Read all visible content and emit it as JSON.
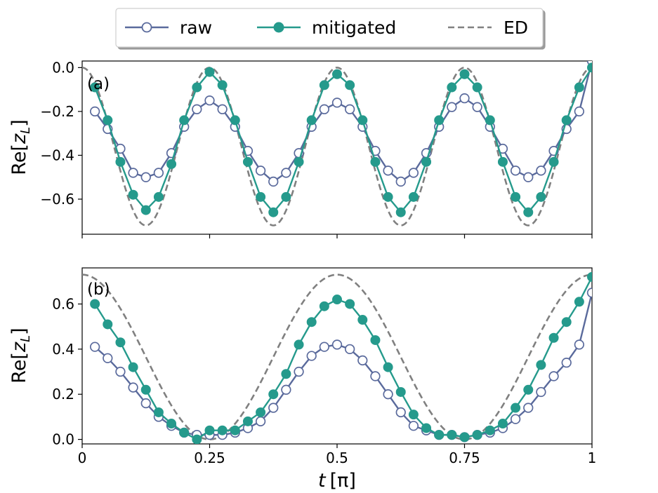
{
  "chart_data": {
    "type": "line",
    "legend": {
      "placement": "top-center",
      "entries": [
        {
          "name": "raw",
          "color": "#5a6a9c",
          "marker": "open-circle",
          "line": "solid"
        },
        {
          "name": "mitigated",
          "color": "#259a8c",
          "marker": "filled-circle",
          "line": "solid"
        },
        {
          "name": "ED",
          "color": "#808080",
          "marker": "none",
          "line": "dashed"
        }
      ]
    },
    "xlabel_main": "t",
    "xlabel_unit": "[π]",
    "x_range": [
      0,
      1
    ],
    "x_ticks": [
      {
        "value": 0,
        "label": "0"
      },
      {
        "value": 0.25,
        "label": "0.25"
      },
      {
        "value": 0.5,
        "label": "0.5"
      },
      {
        "value": 0.75,
        "label": "0.75"
      },
      {
        "value": 1,
        "label": "1"
      }
    ],
    "panels": [
      {
        "label": "(a)",
        "ylabel_main": "Re[",
        "ylabel_sub_var": "z",
        "ylabel_sub": "L",
        "ylabel_end": "]",
        "y_range": [
          -0.76,
          0.03
        ],
        "y_ticks": [
          {
            "value": 0.0,
            "label": "0.0"
          },
          {
            "value": -0.2,
            "label": "−0.2"
          },
          {
            "value": -0.4,
            "label": "−0.4"
          },
          {
            "value": -0.6,
            "label": "−0.6"
          }
        ],
        "series": [
          {
            "name": "raw",
            "x": [
              0.025,
              0.05,
              0.075,
              0.1,
              0.125,
              0.15,
              0.175,
              0.2,
              0.225,
              0.25,
              0.275,
              0.3,
              0.325,
              0.35,
              0.375,
              0.4,
              0.425,
              0.45,
              0.475,
              0.5,
              0.525,
              0.55,
              0.575,
              0.6,
              0.625,
              0.65,
              0.675,
              0.7,
              0.725,
              0.75,
              0.775,
              0.8,
              0.825,
              0.85,
              0.875,
              0.9,
              0.925,
              0.95,
              0.975,
              1.0
            ],
            "y": [
              -0.2,
              -0.28,
              -0.37,
              -0.48,
              -0.5,
              -0.48,
              -0.39,
              -0.27,
              -0.19,
              -0.15,
              -0.19,
              -0.27,
              -0.38,
              -0.47,
              -0.52,
              -0.48,
              -0.39,
              -0.27,
              -0.19,
              -0.16,
              -0.19,
              -0.27,
              -0.38,
              -0.47,
              -0.52,
              -0.48,
              -0.39,
              -0.27,
              -0.18,
              -0.14,
              -0.18,
              -0.27,
              -0.37,
              -0.47,
              -0.5,
              -0.47,
              -0.38,
              -0.28,
              -0.2,
              0.03
            ]
          },
          {
            "name": "mitigated",
            "x": [
              0.025,
              0.05,
              0.075,
              0.1,
              0.125,
              0.15,
              0.175,
              0.2,
              0.225,
              0.25,
              0.275,
              0.3,
              0.325,
              0.35,
              0.375,
              0.4,
              0.425,
              0.45,
              0.475,
              0.5,
              0.525,
              0.55,
              0.575,
              0.6,
              0.625,
              0.65,
              0.675,
              0.7,
              0.725,
              0.75,
              0.775,
              0.8,
              0.825,
              0.85,
              0.875,
              0.9,
              0.925,
              0.95,
              0.975,
              1.0
            ],
            "y": [
              -0.09,
              -0.24,
              -0.43,
              -0.58,
              -0.65,
              -0.59,
              -0.44,
              -0.24,
              -0.09,
              -0.02,
              -0.08,
              -0.24,
              -0.43,
              -0.59,
              -0.66,
              -0.59,
              -0.43,
              -0.24,
              -0.08,
              -0.03,
              -0.08,
              -0.24,
              -0.43,
              -0.59,
              -0.66,
              -0.59,
              -0.43,
              -0.24,
              -0.09,
              -0.03,
              -0.09,
              -0.24,
              -0.43,
              -0.59,
              -0.66,
              -0.59,
              -0.43,
              -0.24,
              -0.09,
              0.0
            ]
          },
          {
            "name": "ED",
            "function": "-0.36*(1-cos(8*pi*t))"
          }
        ]
      },
      {
        "label": "(b)",
        "ylabel_main": "Re[",
        "ylabel_sub_var": "z",
        "ylabel_sub": "L",
        "ylabel_end": "]",
        "y_range": [
          -0.02,
          0.76
        ],
        "y_ticks": [
          {
            "value": 0.0,
            "label": "0.0"
          },
          {
            "value": 0.2,
            "label": "0.2"
          },
          {
            "value": 0.4,
            "label": "0.4"
          },
          {
            "value": 0.6,
            "label": "0.6"
          }
        ],
        "series": [
          {
            "name": "raw",
            "x": [
              0.025,
              0.05,
              0.075,
              0.1,
              0.125,
              0.15,
              0.175,
              0.2,
              0.225,
              0.25,
              0.275,
              0.3,
              0.325,
              0.35,
              0.375,
              0.4,
              0.425,
              0.45,
              0.475,
              0.5,
              0.525,
              0.55,
              0.575,
              0.6,
              0.625,
              0.65,
              0.675,
              0.7,
              0.725,
              0.75,
              0.775,
              0.8,
              0.825,
              0.85,
              0.875,
              0.9,
              0.925,
              0.95,
              0.975,
              1.0
            ],
            "y": [
              0.41,
              0.36,
              0.3,
              0.23,
              0.16,
              0.1,
              0.06,
              0.03,
              0.02,
              0.02,
              0.02,
              0.03,
              0.05,
              0.08,
              0.14,
              0.22,
              0.3,
              0.37,
              0.41,
              0.42,
              0.4,
              0.35,
              0.28,
              0.2,
              0.12,
              0.06,
              0.04,
              0.02,
              0.02,
              0.01,
              0.02,
              0.03,
              0.05,
              0.09,
              0.14,
              0.21,
              0.28,
              0.34,
              0.42,
              0.65
            ]
          },
          {
            "name": "mitigated",
            "x": [
              0.025,
              0.05,
              0.075,
              0.1,
              0.125,
              0.15,
              0.175,
              0.2,
              0.225,
              0.25,
              0.275,
              0.3,
              0.325,
              0.35,
              0.375,
              0.4,
              0.425,
              0.45,
              0.475,
              0.5,
              0.525,
              0.55,
              0.575,
              0.6,
              0.625,
              0.65,
              0.675,
              0.7,
              0.725,
              0.75,
              0.775,
              0.8,
              0.825,
              0.85,
              0.875,
              0.9,
              0.925,
              0.95,
              0.975,
              1.0
            ],
            "y": [
              0.6,
              0.51,
              0.43,
              0.32,
              0.22,
              0.12,
              0.07,
              0.03,
              0.0,
              0.04,
              0.04,
              0.04,
              0.08,
              0.12,
              0.2,
              0.29,
              0.42,
              0.52,
              0.59,
              0.62,
              0.6,
              0.53,
              0.44,
              0.32,
              0.21,
              0.11,
              0.05,
              0.02,
              0.02,
              0.01,
              0.02,
              0.04,
              0.07,
              0.14,
              0.22,
              0.33,
              0.45,
              0.52,
              0.61,
              0.72
            ]
          },
          {
            "name": "ED",
            "function": "0.365*(1+cos(4*pi*t))"
          }
        ]
      }
    ]
  }
}
